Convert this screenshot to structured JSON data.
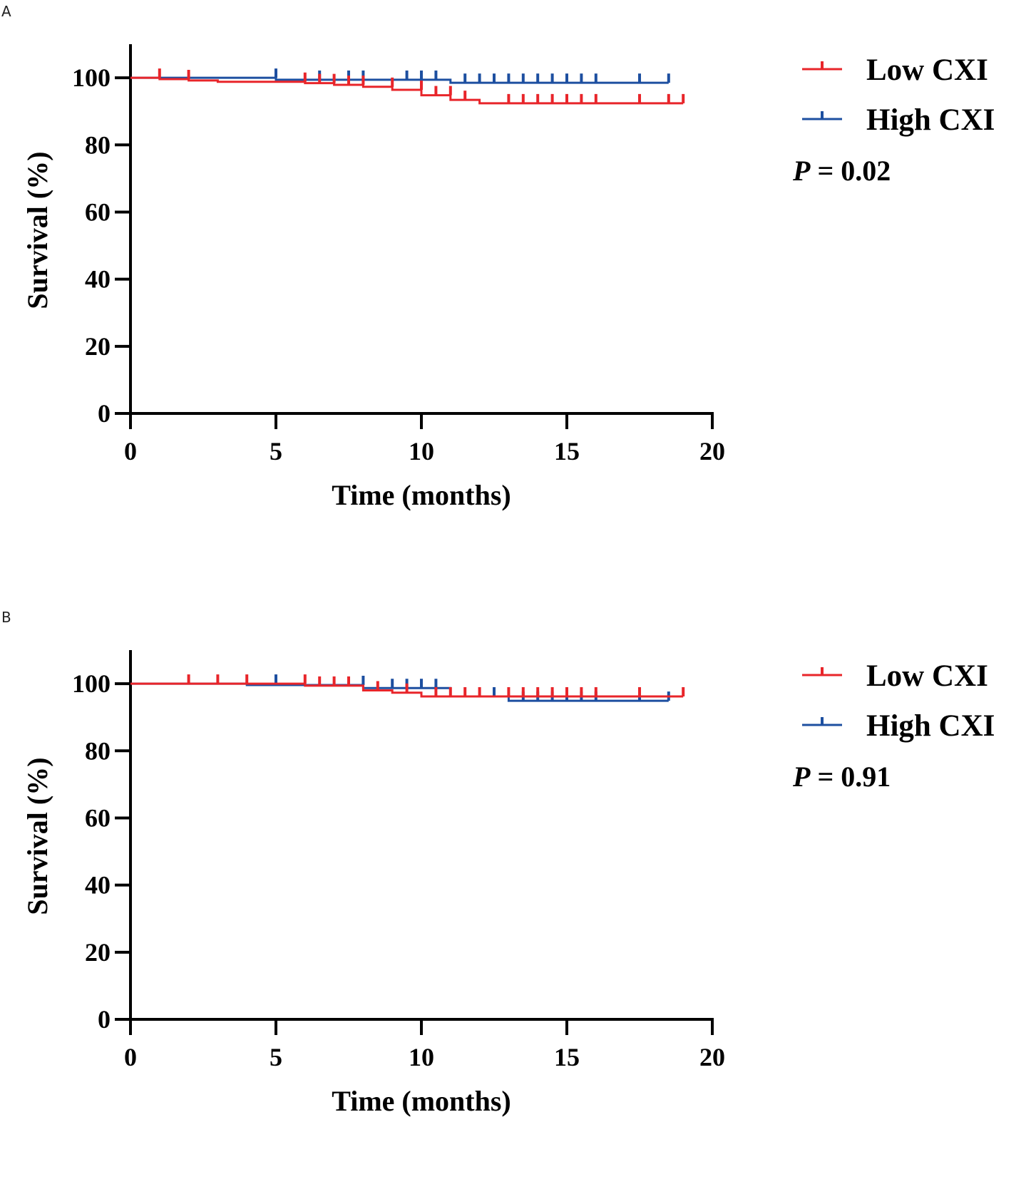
{
  "chart_data": [
    {
      "panel": "A",
      "type": "line",
      "subtype": "kaplan-meier",
      "xlabel": "Time (months)",
      "ylabel": "Survival (%)",
      "xlim": [
        0,
        20
      ],
      "ylim": [
        0,
        110
      ],
      "xticks": [
        0,
        5,
        10,
        15,
        20
      ],
      "yticks": [
        0,
        20,
        40,
        60,
        80,
        100
      ],
      "legend_position": "right",
      "p_label": "P",
      "p_value": "= 0.02",
      "series": [
        {
          "name": "Low CXI",
          "color": "#e8252a",
          "steps": [
            [
              0,
              100
            ],
            [
              1,
              99.6
            ],
            [
              2,
              99.2
            ],
            [
              3,
              98.8
            ],
            [
              6,
              98.4
            ],
            [
              7,
              97.9
            ],
            [
              8,
              97.3
            ],
            [
              9,
              96.4
            ],
            [
              10,
              94.8
            ],
            [
              11,
              93.4
            ],
            [
              12,
              92.4
            ],
            [
              19,
              92.4
            ]
          ],
          "censored": [
            [
              1,
              100
            ],
            [
              2,
              99.6
            ],
            [
              6,
              98.8
            ],
            [
              6.5,
              98.4
            ],
            [
              7,
              98.4
            ],
            [
              7.5,
              97.9
            ],
            [
              8,
              97.9
            ],
            [
              9,
              97.3
            ],
            [
              10,
              96.4
            ],
            [
              10.5,
              94.8
            ],
            [
              11,
              94.8
            ],
            [
              11.5,
              93.4
            ],
            [
              13,
              92.4
            ],
            [
              13.5,
              92.4
            ],
            [
              14,
              92.4
            ],
            [
              14.5,
              92.4
            ],
            [
              15,
              92.4
            ],
            [
              15.5,
              92.4
            ],
            [
              16,
              92.4
            ],
            [
              17.5,
              92.4
            ],
            [
              18.5,
              92.4
            ],
            [
              19,
              92.4
            ]
          ]
        },
        {
          "name": "High CXI",
          "color": "#1d4fa0",
          "steps": [
            [
              0,
              100
            ],
            [
              5,
              99.4
            ],
            [
              11,
              98.5
            ],
            [
              18.5,
              98.5
            ]
          ],
          "censored": [
            [
              5,
              100
            ],
            [
              6.5,
              99.4
            ],
            [
              7.5,
              99.4
            ],
            [
              8,
              99.4
            ],
            [
              9.5,
              99.4
            ],
            [
              10,
              99.4
            ],
            [
              10.5,
              99.4
            ],
            [
              11.5,
              98.5
            ],
            [
              12,
              98.5
            ],
            [
              12.5,
              98.5
            ],
            [
              13,
              98.5
            ],
            [
              13.5,
              98.5
            ],
            [
              14,
              98.5
            ],
            [
              14.5,
              98.5
            ],
            [
              15,
              98.5
            ],
            [
              15.5,
              98.5
            ],
            [
              16,
              98.5
            ],
            [
              17.5,
              98.5
            ],
            [
              18.5,
              98.5
            ]
          ]
        }
      ]
    },
    {
      "panel": "B",
      "type": "line",
      "subtype": "kaplan-meier",
      "xlabel": "Time (months)",
      "ylabel": "Survival (%)",
      "xlim": [
        0,
        20
      ],
      "ylim": [
        0,
        110
      ],
      "xticks": [
        0,
        5,
        10,
        15,
        20
      ],
      "yticks": [
        0,
        20,
        40,
        60,
        80,
        100
      ],
      "legend_position": "right",
      "p_label": "P",
      "p_value": "= 0.91",
      "series": [
        {
          "name": "Low CXI",
          "color": "#e8252a",
          "steps": [
            [
              0,
              100
            ],
            [
              6,
              99.4
            ],
            [
              8,
              98
            ],
            [
              9,
              97.3
            ],
            [
              10,
              96.2
            ],
            [
              19,
              96.2
            ]
          ],
          "censored": [
            [
              2,
              100
            ],
            [
              3,
              100
            ],
            [
              4,
              100
            ],
            [
              6,
              100
            ],
            [
              6.5,
              99.4
            ],
            [
              7,
              99.4
            ],
            [
              7.5,
              99.4
            ],
            [
              8.5,
              98
            ],
            [
              9.5,
              97.3
            ],
            [
              10.5,
              96.2
            ],
            [
              11,
              96.2
            ],
            [
              11.5,
              96.2
            ],
            [
              12,
              96.2
            ],
            [
              13,
              96.2
            ],
            [
              13.5,
              96.2
            ],
            [
              14,
              96.2
            ],
            [
              14.5,
              96.2
            ],
            [
              15,
              96.2
            ],
            [
              15.5,
              96.2
            ],
            [
              16,
              96.2
            ],
            [
              17.5,
              96.2
            ],
            [
              19,
              96.2
            ]
          ]
        },
        {
          "name": "High CXI",
          "color": "#1d4fa0",
          "steps": [
            [
              0,
              100
            ],
            [
              4,
              99.6
            ],
            [
              8,
              98.7
            ],
            [
              11,
              96.2
            ],
            [
              13,
              94.9
            ],
            [
              18.5,
              94.9
            ]
          ],
          "censored": [
            [
              5,
              100
            ],
            [
              8,
              99.6
            ],
            [
              9,
              98.7
            ],
            [
              9.5,
              98.7
            ],
            [
              10,
              98.7
            ],
            [
              10.5,
              98.7
            ],
            [
              12.5,
              96.2
            ],
            [
              13.5,
              94.9
            ],
            [
              14,
              94.9
            ],
            [
              14.5,
              94.9
            ],
            [
              15,
              94.9
            ],
            [
              15.5,
              94.9
            ],
            [
              16,
              94.9
            ],
            [
              17.5,
              94.9
            ],
            [
              18.5,
              94.9
            ]
          ]
        }
      ]
    }
  ]
}
